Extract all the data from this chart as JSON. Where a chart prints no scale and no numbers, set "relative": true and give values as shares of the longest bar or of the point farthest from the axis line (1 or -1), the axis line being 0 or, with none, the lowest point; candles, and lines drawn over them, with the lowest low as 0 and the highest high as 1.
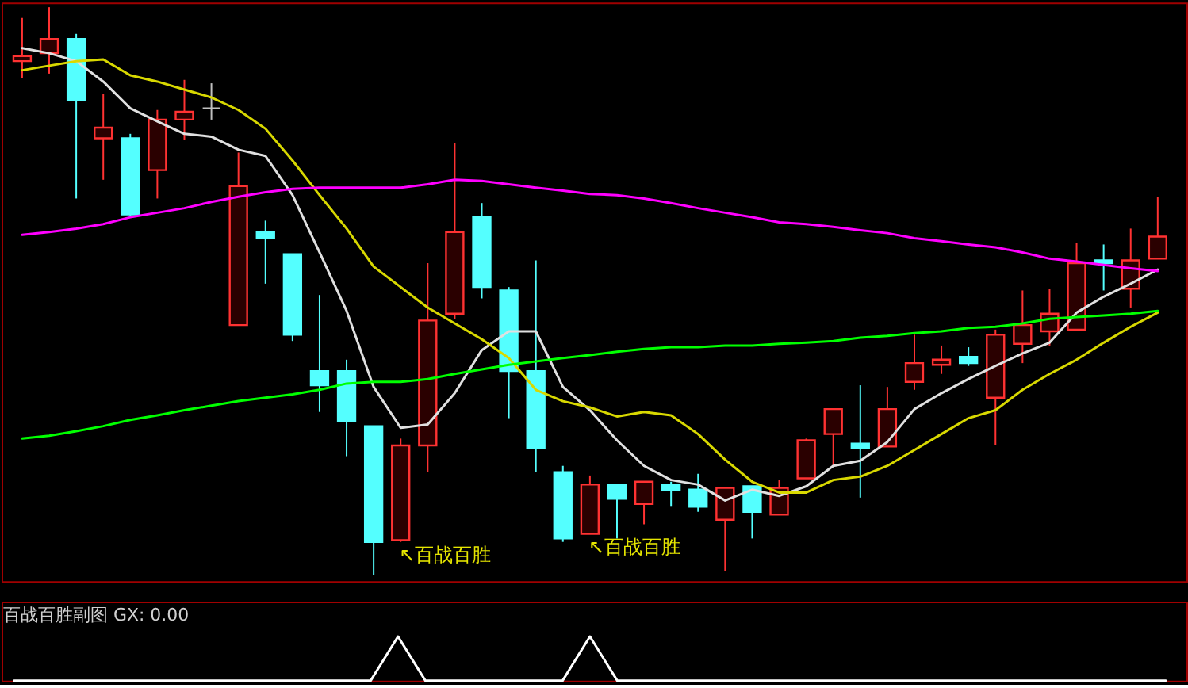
{
  "chart_data": [
    {
      "type": "candlestick",
      "relative": true,
      "categories": [
        null,
        null,
        null,
        null,
        null,
        null,
        null,
        null,
        null,
        null,
        null,
        null,
        null,
        null,
        null,
        null,
        null,
        null,
        null,
        null,
        null,
        null,
        null,
        null,
        null,
        null,
        null,
        null,
        null,
        null,
        null,
        null,
        null,
        null,
        null,
        null,
        null,
        null,
        null,
        null,
        null,
        null,
        null
      ],
      "ohlc": [
        [
          0.905,
          0.981,
          0.875,
          0.914
        ],
        [
          0.919,
          1,
          0.883,
          0.944
        ],
        [
          0.944,
          0.953,
          0.663,
          0.836
        ],
        [
          0.769,
          0.847,
          0.696,
          0.788
        ],
        [
          0.769,
          0.777,
          0.632,
          0.635
        ],
        [
          0.713,
          0.819,
          0.663,
          0.802
        ],
        [
          0.802,
          0.872,
          0.766,
          0.816
        ],
        [
          0.822,
          0.866,
          0.802,
          0.822
        ],
        [
          0.44,
          0.744,
          0.44,
          0.685
        ],
        [
          0.604,
          0.624,
          0.513,
          0.593
        ],
        [
          0.565,
          0.565,
          0.412,
          0.423
        ],
        [
          0.359,
          0.493,
          0.287,
          0.334
        ],
        [
          0.359,
          0.379,
          0.209,
          0.27
        ],
        [
          0.262,
          0.262,
          0,
          0.058
        ],
        [
          0.061,
          0.24,
          0.058,
          0.228
        ],
        [
          0.228,
          0.549,
          0.181,
          0.448
        ],
        [
          0.46,
          0.76,
          0.451,
          0.604
        ],
        [
          0.63,
          0.655,
          0.487,
          0.507
        ],
        [
          0.501,
          0.507,
          0.276,
          0.359
        ],
        [
          0.359,
          0.554,
          0.181,
          0.223
        ],
        [
          0.181,
          0.192,
          0.058,
          0.064
        ],
        [
          0.072,
          0.175,
          0.072,
          0.159
        ],
        [
          0.159,
          0.159,
          0.064,
          0.134
        ],
        [
          0.125,
          0.164,
          0.089,
          0.164
        ],
        [
          0.159,
          0.164,
          0.12,
          0.15
        ],
        [
          0.15,
          0.178,
          0.111,
          0.12
        ],
        [
          0.097,
          0.153,
          0.006,
          0.153
        ],
        [
          0.156,
          0.156,
          0.064,
          0.111
        ],
        [
          0.106,
          0.167,
          0.106,
          0.153
        ],
        [
          0.17,
          0.24,
          0.17,
          0.237
        ],
        [
          0.248,
          0.292,
          0.192,
          0.292
        ],
        [
          0.231,
          0.334,
          0.136,
          0.223
        ],
        [
          0.226,
          0.331,
          0.226,
          0.292
        ],
        [
          0.34,
          0.423,
          0.326,
          0.373
        ],
        [
          0.37,
          0.404,
          0.354,
          0.379
        ],
        [
          0.384,
          0.401,
          0.368,
          0.373
        ],
        [
          0.312,
          0.432,
          0.228,
          0.423
        ],
        [
          0.407,
          0.501,
          0.373,
          0.44
        ],
        [
          0.429,
          0.504,
          0.404,
          0.46
        ],
        [
          0.432,
          0.585,
          0.432,
          0.549
        ],
        [
          0.554,
          0.582,
          0.501,
          0.549
        ],
        [
          0.504,
          0.61,
          0.471,
          0.554
        ],
        [
          0.557,
          0.666,
          0.557,
          0.596
        ]
      ],
      "colors": [
        "#ff3232",
        "#ff3232",
        "#54ffff",
        "#ff3232",
        "#54ffff",
        "#ff3232",
        "#ff3232",
        "#c0c0c0",
        "#ff3232",
        "#54ffff",
        "#54ffff",
        "#54ffff",
        "#54ffff",
        "#54ffff",
        "#ff3232",
        "#ff3232",
        "#ff3232",
        "#54ffff",
        "#54ffff",
        "#54ffff",
        "#54ffff",
        "#ff3232",
        "#54ffff",
        "#ff3232",
        "#54ffff",
        "#54ffff",
        "#ff3232",
        "#54ffff",
        "#ff3232",
        "#ff3232",
        "#ff3232",
        "#54ffff",
        "#ff3232",
        "#ff3232",
        "#ff3232",
        "#54ffff",
        "#ff3232",
        "#ff3232",
        "#ff3232",
        "#ff3232",
        "#54ffff",
        "#ff3232",
        "#ff3232"
      ],
      "series": [
        {
          "type": "line",
          "color": "#e0e0e0",
          "values": [
            0.928,
            0.919,
            0.905,
            0.869,
            0.822,
            0.799,
            0.777,
            0.772,
            0.749,
            0.738,
            0.669,
            0.568,
            0.465,
            0.331,
            0.259,
            0.265,
            0.32,
            0.396,
            0.429,
            0.429,
            0.331,
            0.29,
            0.237,
            0.192,
            0.167,
            0.159,
            0.131,
            0.15,
            0.139,
            0.156,
            0.192,
            0.201,
            0.234,
            0.292,
            0.32,
            0.345,
            0.368,
            0.39,
            0.409,
            0.462,
            0.49,
            0.513,
            0.538
          ]
        },
        {
          "type": "line",
          "color": "#d8d800",
          "values": [
            0.889,
            0.897,
            0.905,
            0.908,
            0.88,
            0.869,
            0.855,
            0.841,
            0.819,
            0.786,
            0.73,
            0.669,
            0.61,
            0.543,
            0.507,
            0.471,
            0.443,
            0.415,
            0.382,
            0.326,
            0.306,
            0.295,
            0.279,
            0.287,
            0.281,
            0.248,
            0.203,
            0.164,
            0.145,
            0.145,
            0.167,
            0.173,
            0.192,
            0.22,
            0.248,
            0.276,
            0.29,
            0.326,
            0.354,
            0.379,
            0.409,
            0.437,
            0.462
          ]
        },
        {
          "type": "line",
          "color": "#ff00ff",
          "values": [
            0.599,
            0.604,
            0.61,
            0.618,
            0.63,
            0.638,
            0.646,
            0.657,
            0.666,
            0.674,
            0.68,
            0.682,
            0.682,
            0.682,
            0.682,
            0.688,
            0.696,
            0.694,
            0.688,
            0.682,
            0.677,
            0.671,
            0.669,
            0.663,
            0.655,
            0.646,
            0.638,
            0.63,
            0.621,
            0.618,
            0.613,
            0.607,
            0.602,
            0.593,
            0.588,
            0.582,
            0.577,
            0.568,
            0.557,
            0.552,
            0.546,
            0.54,
            0.535
          ]
        },
        {
          "type": "line",
          "color": "#00ff00",
          "values": [
            0.24,
            0.245,
            0.253,
            0.262,
            0.273,
            0.281,
            0.29,
            0.298,
            0.306,
            0.312,
            0.318,
            0.326,
            0.337,
            0.34,
            0.34,
            0.345,
            0.354,
            0.362,
            0.37,
            0.376,
            0.382,
            0.387,
            0.393,
            0.398,
            0.401,
            0.401,
            0.404,
            0.404,
            0.407,
            0.409,
            0.412,
            0.418,
            0.421,
            0.426,
            0.429,
            0.435,
            0.437,
            0.443,
            0.451,
            0.454,
            0.457,
            0.46,
            0.465
          ]
        }
      ],
      "annotations": [
        "↖百战百胜",
        "↖百战百胜"
      ]
    },
    {
      "type": "line",
      "relative": true,
      "title": "百战百胜副图  GX: 0.00",
      "color": "#ffffff",
      "categories": [
        null,
        null,
        null,
        null,
        null,
        null,
        null,
        null,
        null,
        null,
        null,
        null,
        null,
        null,
        null,
        null,
        null,
        null,
        null,
        null,
        null,
        null,
        null,
        null,
        null,
        null,
        null,
        null,
        null,
        null,
        null,
        null,
        null,
        null,
        null,
        null,
        null,
        null,
        null,
        null,
        null,
        null,
        null
      ],
      "values": [
        0,
        0,
        0,
        0,
        0,
        0,
        0,
        0,
        0,
        0,
        0,
        0,
        0,
        0,
        1,
        0,
        0,
        0,
        0,
        0,
        0,
        1,
        0,
        0,
        0,
        0,
        0,
        0,
        0,
        0,
        0,
        0,
        0,
        0,
        0,
        0,
        0,
        0,
        0,
        0,
        0,
        0,
        0
      ]
    }
  ]
}
